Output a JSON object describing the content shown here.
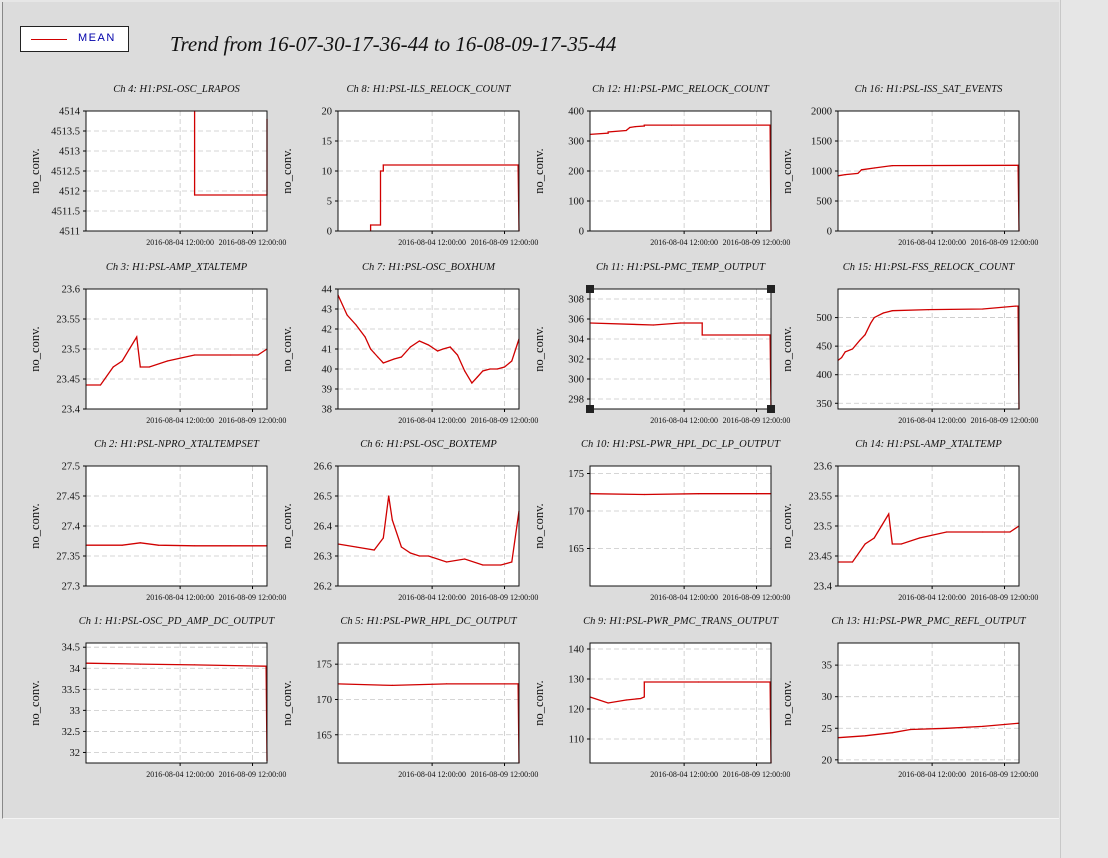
{
  "legend": {
    "label": "MEAN",
    "color": "#d00000"
  },
  "title": "Trend from 16-07-30-17-36-44 to 16-08-09-17-35-44",
  "chart_data": [
    {
      "type": "line",
      "title": "Ch 4: H1:PSL-OSC_LRAPOS",
      "ylabel": "no_conv.",
      "ylim": [
        4511,
        4514
      ],
      "yticks": [
        "4514",
        "4513.5",
        "4513",
        "4512.5",
        "4512",
        "4511.5",
        "4511"
      ],
      "xticks": [
        "2016-08-04 12:00:00",
        "2016-08-09 12:00:00"
      ],
      "series": [
        {
          "x": [
            0.6,
            0.6,
            1.0,
            1.0
          ],
          "y": [
            4514,
            4511.9,
            4511.9,
            4513.8
          ]
        }
      ]
    },
    {
      "type": "line",
      "title": "Ch 8: H1:PSL-ILS_RELOCK_COUNT",
      "ylabel": "no_conv.",
      "ylim": [
        0,
        20
      ],
      "yticks": [
        "20",
        "15",
        "10",
        "5",
        "0"
      ],
      "xticks": [
        "2016-08-04 12:00:00",
        "2016-08-09 12:00:00"
      ],
      "series": [
        {
          "x": [
            0.18,
            0.18,
            0.235,
            0.235,
            0.25,
            0.25,
            0.995,
            1.0
          ],
          "y": [
            0,
            1,
            1,
            10,
            10,
            11,
            11,
            0
          ]
        }
      ]
    },
    {
      "type": "line",
      "title": "Ch 12: H1:PSL-PMC_RELOCK_COUNT",
      "ylabel": "no_conv.",
      "ylim": [
        0,
        400
      ],
      "yticks": [
        "400",
        "300",
        "200",
        "100",
        "0"
      ],
      "xticks": [
        "2016-08-04 12:00:00",
        "2016-08-09 12:00:00"
      ],
      "series": [
        {
          "x": [
            0,
            0.1,
            0.1,
            0.2,
            0.22,
            0.25,
            0.3,
            0.3,
            0.45,
            0.995,
            1.0
          ],
          "y": [
            322,
            326,
            330,
            335,
            345,
            348,
            350,
            353,
            353,
            353,
            0
          ]
        }
      ]
    },
    {
      "type": "line",
      "title": "Ch 16: H1:PSL-ISS_SAT_EVENTS",
      "ylabel": "no_conv.",
      "ylim": [
        0,
        2000
      ],
      "yticks": [
        "2000",
        "1500",
        "1000",
        "500",
        "0"
      ],
      "xticks": [
        "2016-08-04 12:00:00",
        "2016-08-09 12:00:00"
      ],
      "series": [
        {
          "x": [
            0,
            0.04,
            0.11,
            0.13,
            0.2,
            0.3,
            0.995,
            1.0
          ],
          "y": [
            920,
            940,
            960,
            1020,
            1050,
            1090,
            1095,
            0
          ]
        }
      ]
    },
    {
      "type": "line",
      "title": "Ch 3: H1:PSL-AMP_XTALTEMP",
      "ylabel": "no_conv.",
      "ylim": [
        23.4,
        23.6
      ],
      "yticks": [
        "23.6",
        "23.55",
        "23.5",
        "23.45",
        "23.4"
      ],
      "xticks": [
        "2016-08-04 12:00:00",
        "2016-08-09 12:00:00"
      ],
      "series": [
        {
          "x": [
            0,
            0.08,
            0.15,
            0.2,
            0.28,
            0.3,
            0.35,
            0.45,
            0.6,
            0.8,
            0.95,
            1.0
          ],
          "y": [
            23.44,
            23.44,
            23.47,
            23.48,
            23.52,
            23.47,
            23.47,
            23.48,
            23.49,
            23.49,
            23.49,
            23.5
          ]
        }
      ]
    },
    {
      "type": "line",
      "title": "Ch 7: H1:PSL-OSC_BOXHUM",
      "ylabel": "no_conv.",
      "ylim": [
        38,
        44
      ],
      "yticks": [
        "44",
        "43",
        "42",
        "41",
        "40",
        "39",
        "38"
      ],
      "xticks": [
        "2016-08-04 12:00:00",
        "2016-08-09 12:00:00"
      ],
      "series": [
        {
          "x": [
            0,
            0.05,
            0.1,
            0.15,
            0.18,
            0.2,
            0.22,
            0.25,
            0.28,
            0.31,
            0.35,
            0.4,
            0.45,
            0.5,
            0.55,
            0.58,
            0.62,
            0.66,
            0.7,
            0.74,
            0.77,
            0.8,
            0.84,
            0.88,
            0.92,
            0.96,
            1.0
          ],
          "y": [
            43.7,
            42.7,
            42.2,
            41.6,
            41.0,
            40.8,
            40.6,
            40.3,
            40.4,
            40.5,
            40.6,
            41.1,
            41.4,
            41.2,
            40.9,
            41.0,
            41.1,
            40.7,
            39.9,
            39.3,
            39.6,
            39.9,
            40.0,
            40.0,
            40.1,
            40.4,
            41.5
          ]
        }
      ]
    },
    {
      "type": "line",
      "title": "Ch 11: H1:PSL-PMC_TEMP_OUTPUT",
      "ylabel": "no_conv.",
      "ylim": [
        297,
        309
      ],
      "yticks": [
        "308",
        "306",
        "304",
        "302",
        "300",
        "298"
      ],
      "xticks": [
        "2016-08-04 12:00:00",
        "2016-08-09 12:00:00"
      ],
      "series": [
        {
          "x": [
            0,
            0.35,
            0.5,
            0.62,
            0.62,
            0.995,
            1.0
          ],
          "y": [
            305.6,
            305.4,
            305.6,
            305.6,
            304.4,
            304.4,
            297
          ]
        }
      ]
    },
    {
      "type": "line",
      "title": "Ch 15: H1:PSL-FSS_RELOCK_COUNT",
      "ylabel": "no_conv.",
      "ylim": [
        340,
        550
      ],
      "yticks": [
        "500",
        "450",
        "400",
        "350"
      ],
      "xticks": [
        "2016-08-04 12:00:00",
        "2016-08-09 12:00:00"
      ],
      "series": [
        {
          "x": [
            0,
            0.02,
            0.04,
            0.08,
            0.12,
            0.15,
            0.18,
            0.2,
            0.25,
            0.3,
            0.5,
            0.8,
            0.98,
            0.995,
            1.0
          ],
          "y": [
            425,
            430,
            440,
            445,
            460,
            470,
            490,
            500,
            508,
            512,
            514,
            515,
            520,
            520,
            340
          ]
        }
      ]
    },
    {
      "type": "line",
      "title": "Ch 2: H1:PSL-NPRO_XTALTEMPSET",
      "ylabel": "no_conv.",
      "ylim": [
        27.3,
        27.5
      ],
      "yticks": [
        "27.5",
        "27.45",
        "27.4",
        "27.35",
        "27.3"
      ],
      "xticks": [
        "2016-08-04 12:00:00",
        "2016-08-09 12:00:00"
      ],
      "series": [
        {
          "x": [
            0,
            0.2,
            0.3,
            0.4,
            0.6,
            0.8,
            1.0
          ],
          "y": [
            27.368,
            27.368,
            27.372,
            27.368,
            27.367,
            27.367,
            27.367
          ]
        }
      ]
    },
    {
      "type": "line",
      "title": "Ch 6: H1:PSL-OSC_BOXTEMP",
      "ylabel": "no_conv.",
      "ylim": [
        26.2,
        26.6
      ],
      "yticks": [
        "26.6",
        "26.5",
        "26.4",
        "26.3",
        "26.2"
      ],
      "xticks": [
        "2016-08-04 12:00:00",
        "2016-08-09 12:00:00"
      ],
      "series": [
        {
          "x": [
            0,
            0.1,
            0.2,
            0.25,
            0.28,
            0.3,
            0.35,
            0.4,
            0.45,
            0.5,
            0.6,
            0.7,
            0.8,
            0.9,
            0.96,
            1.0
          ],
          "y": [
            26.34,
            26.33,
            26.32,
            26.36,
            26.5,
            26.42,
            26.33,
            26.31,
            26.3,
            26.3,
            26.28,
            26.29,
            26.27,
            26.27,
            26.28,
            26.45
          ]
        }
      ]
    },
    {
      "type": "line",
      "title": "Ch 10: H1:PSL-PWR_HPL_DC_LP_OUTPUT",
      "ylabel": "no_conv.",
      "ylim": [
        160,
        176
      ],
      "yticks": [
        "175",
        "170",
        "165"
      ],
      "xticks": [
        "2016-08-04 12:00:00",
        "2016-08-09 12:00:00"
      ],
      "series": [
        {
          "x": [
            0,
            0.3,
            0.6,
            1.0
          ],
          "y": [
            172.3,
            172.2,
            172.3,
            172.3
          ]
        }
      ]
    },
    {
      "type": "line",
      "title": "Ch 14: H1:PSL-AMP_XTALTEMP",
      "ylabel": "no_conv.",
      "ylim": [
        23.4,
        23.6
      ],
      "yticks": [
        "23.6",
        "23.55",
        "23.5",
        "23.45",
        "23.4"
      ],
      "xticks": [
        "2016-08-04 12:00:00",
        "2016-08-09 12:00:00"
      ],
      "series": [
        {
          "x": [
            0,
            0.08,
            0.15,
            0.2,
            0.28,
            0.3,
            0.35,
            0.45,
            0.6,
            0.8,
            0.95,
            1.0
          ],
          "y": [
            23.44,
            23.44,
            23.47,
            23.48,
            23.52,
            23.47,
            23.47,
            23.48,
            23.49,
            23.49,
            23.49,
            23.5
          ]
        }
      ]
    },
    {
      "type": "line",
      "title": "Ch 1: H1:PSL-OSC_PD_AMP_DC_OUTPUT",
      "ylabel": "no_conv.",
      "ylim": [
        31.75,
        34.6
      ],
      "yticks": [
        "34.5",
        "34",
        "33.5",
        "33",
        "32.5",
        "32"
      ],
      "xticks": [
        "2016-08-04 12:00:00",
        "2016-08-09 12:00:00"
      ],
      "series": [
        {
          "x": [
            0,
            0.3,
            0.6,
            0.995,
            1.0
          ],
          "y": [
            34.12,
            34.1,
            34.08,
            34.05,
            31.8
          ]
        }
      ]
    },
    {
      "type": "line",
      "title": "Ch 5: H1:PSL-PWR_HPL_DC_OUTPUT",
      "ylabel": "no_conv.",
      "ylim": [
        161,
        178
      ],
      "yticks": [
        "175",
        "170",
        "165"
      ],
      "xticks": [
        "2016-08-04 12:00:00",
        "2016-08-09 12:00:00"
      ],
      "series": [
        {
          "x": [
            0,
            0.3,
            0.6,
            0.995,
            1.0
          ],
          "y": [
            172.2,
            172.0,
            172.2,
            172.2,
            161
          ]
        }
      ]
    },
    {
      "type": "line",
      "title": "Ch 9: H1:PSL-PWR_PMC_TRANS_OUTPUT",
      "ylabel": "no_conv.",
      "ylim": [
        102,
        142
      ],
      "yticks": [
        "140",
        "130",
        "120",
        "110"
      ],
      "xticks": [
        "2016-08-04 12:00:00",
        "2016-08-09 12:00:00"
      ],
      "series": [
        {
          "x": [
            0,
            0.1,
            0.2,
            0.28,
            0.3,
            0.3,
            0.6,
            0.995,
            1.0
          ],
          "y": [
            124,
            122,
            123,
            123.5,
            124,
            129,
            129,
            129,
            102
          ]
        }
      ]
    },
    {
      "type": "line",
      "title": "Ch 13: H1:PSL-PWR_PMC_REFL_OUTPUT",
      "ylabel": "no_conv.",
      "ylim": [
        19.5,
        38.5
      ],
      "yticks": [
        "35",
        "30",
        "25",
        "20"
      ],
      "xticks": [
        "2016-08-04 12:00:00",
        "2016-08-09 12:00:00"
      ],
      "series": [
        {
          "x": [
            0,
            0.15,
            0.3,
            0.4,
            0.6,
            0.8,
            1.0
          ],
          "y": [
            23.5,
            23.8,
            24.3,
            24.8,
            25.0,
            25.3,
            25.8
          ]
        }
      ]
    }
  ]
}
